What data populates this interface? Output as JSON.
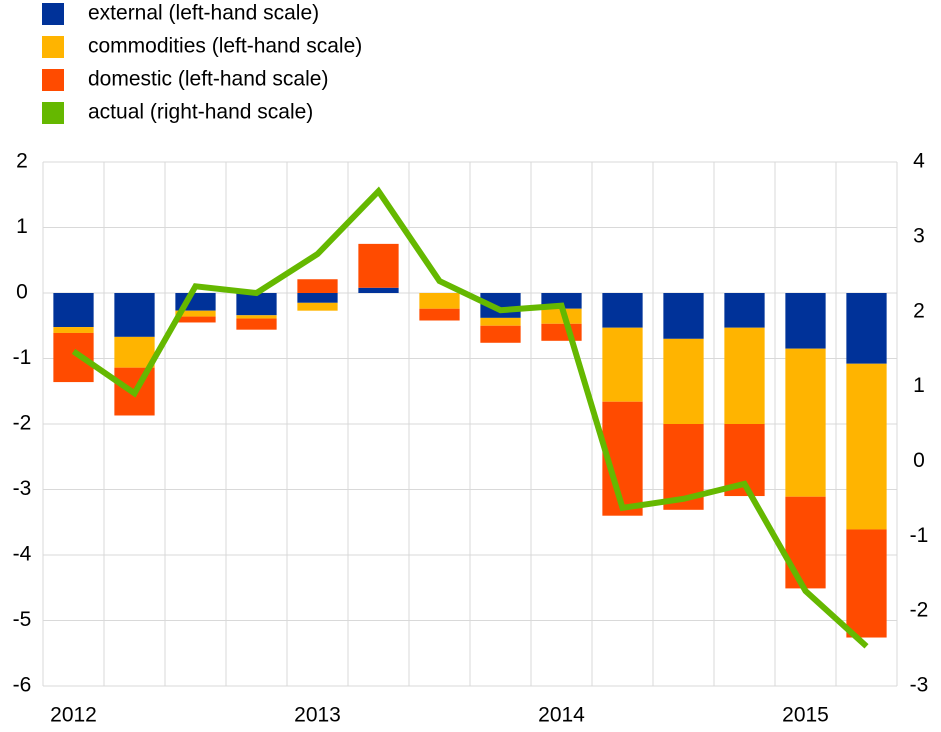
{
  "chart_data": {
    "type": "bar",
    "categories": [
      "2012",
      null,
      null,
      null,
      "2013",
      null,
      null,
      null,
      "2014",
      null,
      null,
      null,
      "2015",
      null
    ],
    "series": [
      {
        "name": "external (left-hand scale)",
        "color": "#003299",
        "values": [
          -0.52,
          -0.67,
          -0.27,
          -0.34,
          -0.15,
          0.08,
          0,
          -0.38,
          -0.24,
          -0.53,
          -0.7,
          -0.53,
          -0.85,
          -1.08
        ]
      },
      {
        "name": "commodities (left-hand scale)",
        "color": "#ffb400",
        "values": [
          -0.09,
          -0.47,
          -0.09,
          -0.05,
          -0.12,
          0,
          -0.24,
          -0.12,
          -0.23,
          -1.13,
          -1.3,
          -1.47,
          -2.26,
          -2.53
        ]
      },
      {
        "name": "domestic (left-hand scale)",
        "color": "#ff4b00",
        "values": [
          -0.75,
          -0.73,
          -0.09,
          -0.17,
          0.21,
          0.67,
          -0.18,
          -0.26,
          -0.26,
          -1.74,
          -1.31,
          -1.1,
          -1.4,
          -1.65
        ]
      },
      {
        "name": "actual (right-hand scale)",
        "color": "#65b800",
        "type": "line",
        "axis": "y2",
        "values": [
          1.47,
          0.91,
          2.34,
          2.25,
          2.77,
          3.61,
          2.41,
          2.02,
          2.08,
          -0.62,
          -0.5,
          -0.3,
          -1.73,
          -2.47
        ]
      }
    ],
    "stacked": true,
    "ylim": [
      -6,
      2
    ],
    "yticks": [
      -6,
      -5,
      -4,
      -3,
      -2,
      -1,
      0,
      1,
      2
    ],
    "y2lim": [
      -3,
      4
    ],
    "y2ticks": [
      -3,
      -2,
      -1,
      0,
      1,
      2,
      3,
      4
    ],
    "grid": true,
    "legend": "top-left"
  }
}
